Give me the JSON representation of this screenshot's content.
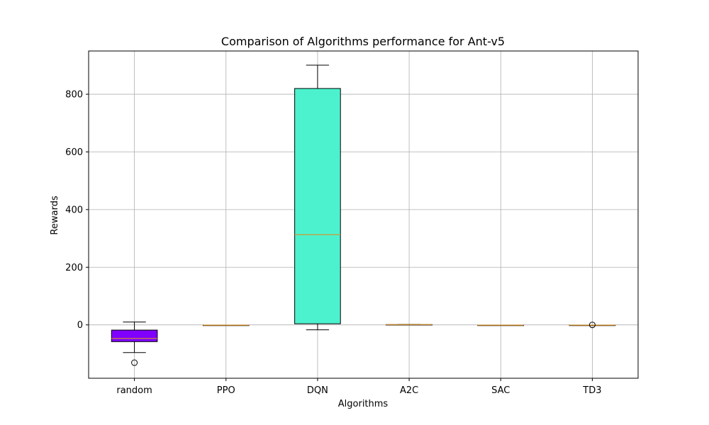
{
  "chart_data": {
    "type": "box",
    "title": "Comparison of Algorithms performance for Ant-v5",
    "xlabel": "Algorithms",
    "ylabel": "Rewards",
    "ylim": [
      -185,
      950
    ],
    "yticks": [
      0,
      200,
      400,
      600,
      800
    ],
    "grid": true,
    "categories": [
      "random",
      "PPO",
      "DQN",
      "A2C",
      "SAC",
      "TD3"
    ],
    "boxes": [
      {
        "category": "random",
        "whisker_low": -96,
        "q1": -58,
        "median": -47,
        "q3": -18,
        "whisker_high": 10,
        "outliers": [
          -131
        ],
        "color": "#8000ff"
      },
      {
        "category": "PPO",
        "whisker_low": -1,
        "q1": -1,
        "median": -1,
        "q3": -1,
        "whisker_high": -1,
        "outliers": [],
        "color": "#2a83f8"
      },
      {
        "category": "DQN",
        "whisker_low": -17,
        "q1": 4,
        "median": 313,
        "q3": 820,
        "whisker_high": 901,
        "outliers": [],
        "color": "#4cf2ce"
      },
      {
        "category": "A2C",
        "whisker_low": 1,
        "q1": 1,
        "median": 1,
        "q3": 1,
        "whisker_high": 1,
        "outliers": [],
        "color": "#b2f396"
      },
      {
        "category": "SAC",
        "whisker_low": -1,
        "q1": -1,
        "median": -1,
        "q3": -1,
        "whisker_high": -1,
        "outliers": [],
        "color": "#ff8b46"
      },
      {
        "category": "TD3",
        "whisker_low": -1,
        "q1": -1,
        "median": -1,
        "q3": -1,
        "whisker_high": -1,
        "outliers": [
          0
        ],
        "color": "#ff0000"
      }
    ],
    "colors": {
      "median": "#d99026",
      "grid": "#b0b0b0",
      "outline": "#000000"
    }
  }
}
